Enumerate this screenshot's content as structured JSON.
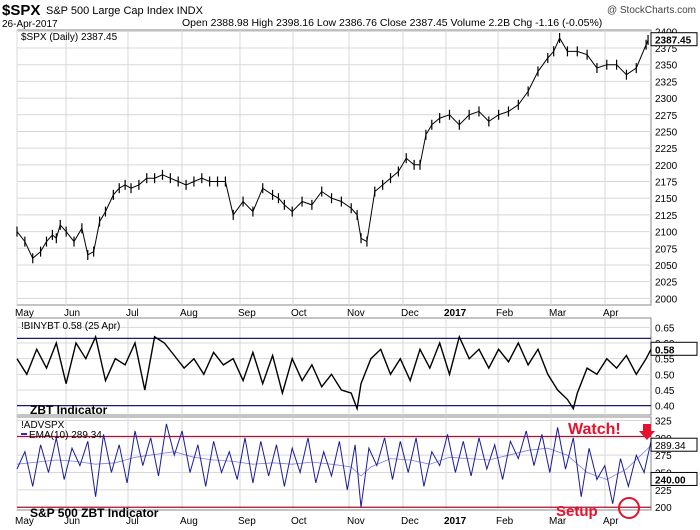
{
  "header": {
    "symbol": "$SPX",
    "full_name": "S&P 500 Large Cap Index INDX",
    "date": "26-Apr-2017",
    "ohlc": "Open 2388.98  High 2398.16  Low 2386.76  Close 2387.45  Volume 2.2B  Chg -1.16 (-0.05%)",
    "watermark": "@ StockCharts.com"
  },
  "colors": {
    "price": "#000000",
    "zbt_line": "#000000",
    "advspx_line": "#1b1b9a",
    "ema_line": "#2a2ad0",
    "threshold_navy": "#1a1a7a",
    "threshold_red": "#b01030",
    "annotation_red": "#e8112d",
    "grid": "#d8d8d8"
  },
  "chart_data": [
    {
      "type": "candlestick",
      "legend": "$SPX (Daily) 2387.45",
      "last_value_label": "2387.45",
      "ylim": [
        1990,
        2402
      ],
      "ytick_labels": [
        "2000",
        "2025",
        "2050",
        "2075",
        "2100",
        "2125",
        "2150",
        "2175",
        "2200",
        "2225",
        "2250",
        "2275",
        "2300",
        "2325",
        "2350",
        "2375",
        "2400"
      ],
      "xtick_labels": [
        "May",
        "Jun",
        "Jul",
        "Aug",
        "Sep",
        "Oct",
        "Nov",
        "Dec",
        "2017",
        "Feb",
        "Mar",
        "Apr"
      ],
      "series": [
        {
          "x": [
            0,
            8,
            16,
            24,
            30,
            36,
            40,
            44,
            50,
            58,
            66,
            72,
            78,
            84,
            90,
            98,
            104,
            110,
            116,
            124,
            132,
            140,
            148,
            156,
            164,
            172,
            180,
            188,
            196,
            204,
            212,
            220,
            230,
            240,
            250,
            260,
            266,
            272,
            280,
            290,
            300,
            310,
            320,
            330,
            340,
            346,
            350,
            356,
            364,
            372,
            380,
            388,
            396,
            404,
            410,
            416,
            422,
            430,
            440,
            450,
            460,
            470,
            480,
            490,
            500,
            510,
            520,
            530,
            540,
            546,
            552,
            560,
            570,
            580,
            590,
            600,
            610,
            620,
            630,
            640,
            642
          ],
          "y": [
            2100,
            2085,
            2060,
            2070,
            2085,
            2095,
            2090,
            2110,
            2100,
            2085,
            2105,
            2065,
            2070,
            2115,
            2130,
            2155,
            2165,
            2170,
            2165,
            2170,
            2180,
            2180,
            2185,
            2180,
            2175,
            2170,
            2175,
            2180,
            2175,
            2175,
            2175,
            2125,
            2145,
            2130,
            2165,
            2155,
            2150,
            2140,
            2130,
            2145,
            2140,
            2160,
            2150,
            2145,
            2135,
            2125,
            2090,
            2085,
            2160,
            2170,
            2180,
            2190,
            2210,
            2200,
            2200,
            2245,
            2260,
            2270,
            2275,
            2260,
            2275,
            2280,
            2265,
            2275,
            2280,
            2290,
            2310,
            2340,
            2360,
            2370,
            2390,
            2370,
            2370,
            2365,
            2345,
            2350,
            2350,
            2335,
            2345,
            2380,
            2387
          ]
        }
      ]
    },
    {
      "type": "line",
      "legend": "!BINYBT 0.58 (25 Apr)",
      "annotation": "ZBT Indicator",
      "last_value_label": "0.58",
      "ylim": [
        0.37,
        0.68
      ],
      "ytick_labels": [
        "0.65",
        "0.60",
        "0.55",
        "0.50",
        "0.45",
        "0.40"
      ],
      "thresholds": [
        0.615,
        0.4
      ],
      "series": [
        {
          "x": [
            0,
            10,
            20,
            30,
            40,
            50,
            60,
            70,
            80,
            90,
            100,
            110,
            120,
            130,
            140,
            150,
            160,
            170,
            180,
            190,
            200,
            210,
            220,
            230,
            240,
            250,
            260,
            270,
            280,
            290,
            300,
            310,
            320,
            330,
            340,
            346,
            350,
            360,
            370,
            380,
            390,
            400,
            410,
            420,
            430,
            440,
            450,
            460,
            470,
            480,
            490,
            500,
            510,
            520,
            530,
            540,
            550,
            560,
            566,
            570,
            580,
            590,
            600,
            610,
            620,
            630,
            640,
            645
          ],
          "y": [
            0.55,
            0.5,
            0.58,
            0.52,
            0.6,
            0.47,
            0.6,
            0.55,
            0.62,
            0.48,
            0.55,
            0.53,
            0.6,
            0.45,
            0.62,
            0.6,
            0.56,
            0.52,
            0.55,
            0.5,
            0.57,
            0.53,
            0.55,
            0.48,
            0.57,
            0.47,
            0.56,
            0.44,
            0.55,
            0.48,
            0.53,
            0.46,
            0.5,
            0.45,
            0.44,
            0.39,
            0.47,
            0.55,
            0.58,
            0.5,
            0.55,
            0.48,
            0.58,
            0.52,
            0.6,
            0.5,
            0.62,
            0.55,
            0.58,
            0.52,
            0.58,
            0.54,
            0.6,
            0.53,
            0.58,
            0.5,
            0.45,
            0.42,
            0.39,
            0.44,
            0.52,
            0.5,
            0.55,
            0.52,
            0.56,
            0.5,
            0.55,
            0.58
          ]
        }
      ]
    },
    {
      "type": "line",
      "legend_1": "!ADVSPX",
      "legend_2": "EMA(10) 289.34",
      "annotation": "S&P 500 ZBT Indicator",
      "last_value_label": "289.34",
      "second_value_label": "240.00",
      "ylim": [
        196,
        330
      ],
      "ytick_labels": [
        "325",
        "300",
        "275",
        "250",
        "225",
        "200"
      ],
      "thresholds": [
        302,
        240,
        200
      ],
      "setup_label": "Setup",
      "watch_label": "Watch!",
      "series": [
        {
          "name": "!ADVSPX",
          "x": [
            0,
            8,
            16,
            24,
            32,
            40,
            48,
            56,
            64,
            72,
            80,
            88,
            96,
            104,
            112,
            120,
            128,
            136,
            144,
            152,
            160,
            168,
            176,
            184,
            192,
            200,
            208,
            216,
            224,
            232,
            240,
            248,
            256,
            264,
            272,
            280,
            288,
            296,
            304,
            312,
            320,
            328,
            336,
            344,
            350,
            358,
            366,
            374,
            382,
            390,
            398,
            406,
            414,
            422,
            430,
            438,
            446,
            454,
            462,
            470,
            478,
            486,
            494,
            502,
            510,
            518,
            526,
            534,
            542,
            550,
            558,
            566,
            574,
            582,
            590,
            598,
            606,
            614,
            622,
            630,
            638,
            645
          ],
          "y": [
            255,
            280,
            230,
            290,
            250,
            300,
            240,
            285,
            260,
            295,
            215,
            305,
            250,
            290,
            235,
            310,
            260,
            300,
            245,
            320,
            275,
            310,
            250,
            290,
            230,
            295,
            250,
            280,
            240,
            300,
            235,
            295,
            245,
            290,
            230,
            285,
            250,
            300,
            235,
            280,
            245,
            295,
            225,
            290,
            200,
            285,
            260,
            300,
            240,
            295,
            250,
            300,
            230,
            280,
            260,
            305,
            250,
            295,
            245,
            300,
            255,
            290,
            240,
            295,
            270,
            310,
            260,
            305,
            250,
            315,
            255,
            300,
            215,
            285,
            240,
            260,
            205,
            270,
            230,
            275,
            250,
            295
          ]
        },
        {
          "name": "EMA(10)",
          "x": [
            0,
            20,
            40,
            60,
            80,
            100,
            120,
            140,
            160,
            180,
            200,
            220,
            240,
            260,
            280,
            300,
            320,
            340,
            350,
            360,
            380,
            400,
            420,
            440,
            460,
            480,
            500,
            520,
            540,
            560,
            580,
            600,
            620,
            645
          ],
          "y": [
            262,
            265,
            268,
            266,
            262,
            264,
            272,
            276,
            280,
            272,
            268,
            266,
            262,
            264,
            262,
            265,
            262,
            258,
            245,
            258,
            270,
            268,
            262,
            272,
            270,
            268,
            275,
            282,
            285,
            275,
            250,
            240,
            255,
            289
          ]
        }
      ]
    }
  ]
}
